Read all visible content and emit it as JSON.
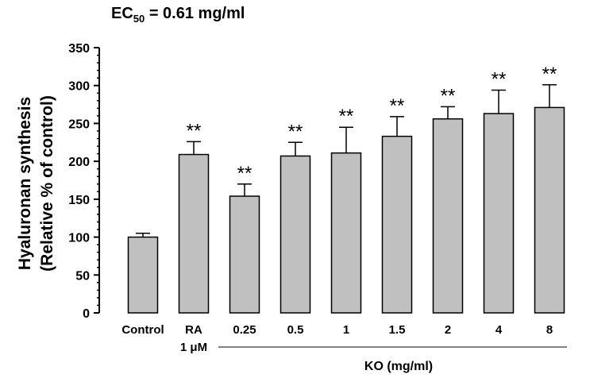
{
  "chart_data": {
    "type": "bar",
    "title": {
      "prefix": "EC",
      "subscript": "50",
      "suffix": " = 0.61 mg/ml"
    },
    "ylabel_line1": "Hyaluronan synthesis",
    "ylabel_line2": "(Relative % of control)",
    "ylim": [
      0,
      350
    ],
    "yticks": [
      0,
      50,
      100,
      150,
      200,
      250,
      300,
      350
    ],
    "categories": [
      {
        "label": "Control",
        "sublabel": ""
      },
      {
        "label": "RA",
        "sublabel": "1 μM"
      },
      {
        "label": "0.25",
        "sublabel": ""
      },
      {
        "label": "0.5",
        "sublabel": ""
      },
      {
        "label": "1",
        "sublabel": ""
      },
      {
        "label": "1.5",
        "sublabel": ""
      },
      {
        "label": "2",
        "sublabel": ""
      },
      {
        "label": "4",
        "sublabel": ""
      },
      {
        "label": "8",
        "sublabel": ""
      }
    ],
    "values": [
      100,
      209,
      154,
      207,
      211,
      233,
      256,
      263,
      271
    ],
    "errors": [
      5,
      17,
      16,
      18,
      34,
      26,
      16,
      31,
      30
    ],
    "annotations": [
      "",
      "**",
      "**",
      "**",
      "**",
      "**",
      "**",
      "**",
      "**"
    ],
    "group_label": "KO (mg/ml)",
    "bar_color": "#c0c0c0",
    "grid": false
  }
}
